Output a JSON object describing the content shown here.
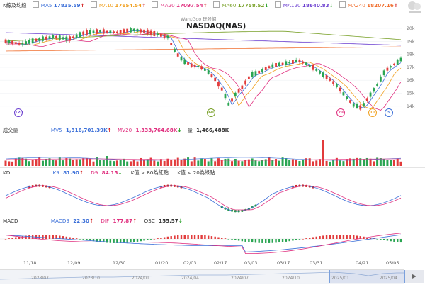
{
  "main_legend": {
    "title": "K線及均線",
    "items": [
      {
        "label": "MA5",
        "value": "17835.59",
        "trend": "↑",
        "color": "#3b6fd8"
      },
      {
        "label": "MA10",
        "value": "17654.54",
        "trend": "↑",
        "color": "#f0a020"
      },
      {
        "label": "MA20",
        "value": "17097.54",
        "trend": "↑",
        "color": "#e0307f"
      },
      {
        "label": "MA60",
        "value": "17758.52",
        "trend": "↓",
        "color": "#7aa12a"
      },
      {
        "label": "MA120",
        "value": "18640.83",
        "trend": "↓",
        "color": "#6b3fd0"
      },
      {
        "label": "MA240",
        "value": "18207.16",
        "trend": "↑",
        "color": "#f07030"
      }
    ]
  },
  "watermark": "WantGoo 玩股網",
  "symbol_title": "NASDAQ(NAS)",
  "price_axis": [
    "20k",
    "19k",
    "18k",
    "17k",
    "16k",
    "15k",
    "14k"
  ],
  "markers": [
    {
      "label": "120",
      "color": "#6b3fd0"
    },
    {
      "label": "60",
      "color": "#7aa12a"
    },
    {
      "label": "20",
      "color": "#e0307f"
    },
    {
      "label": "10",
      "color": "#f0a020"
    },
    {
      "label": "5",
      "color": "#3b6fd8"
    }
  ],
  "volume_legend": {
    "title": "成交量",
    "mv5_label": "MV5",
    "mv5_value": "1,316,701.39K",
    "mv5_trend": "↑",
    "mv20_label": "MV20",
    "mv20_value": "1,333,764.68K",
    "mv20_trend": "↓",
    "vol_label": "量",
    "vol_value": "1,466,488K"
  },
  "kd_legend": {
    "title": "KD",
    "k_label": "K9",
    "k_value": "81.90",
    "k_trend": "↑",
    "d_label": "D9",
    "d_value": "84.15",
    "d_trend": "↓",
    "note_red": "K值 > 80為紅點",
    "note_green": "K值 < 20為綠點"
  },
  "macd_legend": {
    "title": "MACD",
    "macd_label": "MACD9",
    "macd_value": "22.30",
    "macd_trend": "↑",
    "dif_label": "DIF",
    "dif_value": "177.87",
    "dif_trend": "↑",
    "osc_label": "OSC",
    "osc_value": "155.57",
    "osc_trend": "↓"
  },
  "date_axis": [
    "11/18",
    "12/09",
    "12/30",
    "01/20",
    "02/03",
    "02/17",
    "03/03",
    "03/17",
    "03/31",
    "04/21",
    "05/05"
  ],
  "navigator_axis": [
    "2023/07",
    "2023/10",
    "2024/01",
    "2024/04",
    "2024/07",
    "2024/10",
    "2025/01",
    "2025/04"
  ],
  "colors": {
    "up": "#e23b3b",
    "down": "#2aa552",
    "k_line": "#3b6fd8",
    "d_line": "#e0307f"
  }
}
